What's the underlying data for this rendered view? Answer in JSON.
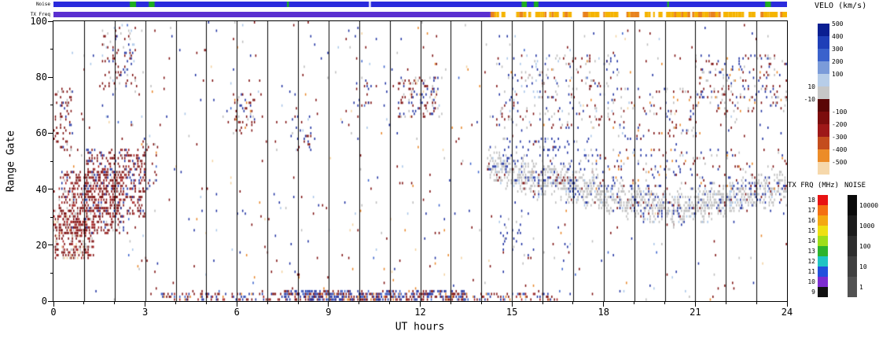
{
  "figure": {
    "ylabel": "Range Gate",
    "xlabel": "UT hours"
  },
  "strips": {
    "noise_label": "Noise",
    "tx_label": "TX Freq",
    "noise": {
      "base_color": "#2b2bdc",
      "mark_color": "#1fae1f",
      "mark_prob": 0.07,
      "gap_color": "#ffffff",
      "gap_prob": 0.012
    },
    "tx": {
      "solid_color": "#5a2fd0",
      "solid_until_hour": 14.3,
      "dash_colors": [
        "#f5b400",
        "#e8821e"
      ],
      "dash_prob": 0.6,
      "gap_color": "#ffffff"
    }
  },
  "colorbars": {
    "velo": {
      "title": "VELO (km/s)",
      "right_labels": [
        "500",
        "400",
        "300",
        "200",
        "100",
        "-100",
        "-200",
        "-300",
        "-400",
        "-500"
      ],
      "right_label_rows": [
        0,
        1,
        2,
        3,
        4,
        7,
        8,
        9,
        10,
        11
      ],
      "left_labels": [
        "10",
        "-10"
      ],
      "left_label_rows": [
        5,
        6
      ],
      "colors": [
        "#0a1f92",
        "#1f3fb8",
        "#3a62cc",
        "#7b9bd9",
        "#b7cde8",
        "#c6c6c6",
        "#5a0505",
        "#7c0d0d",
        "#9e1818",
        "#c44d1d",
        "#ec8c28",
        "#f6d8ab"
      ]
    },
    "tx_frq": {
      "title": "TX FRQ (MHz)",
      "labels": [
        "18",
        "17",
        "16",
        "15",
        "14",
        "13",
        "12",
        "11",
        "10",
        "9"
      ],
      "colors": [
        "#e81212",
        "#f47012",
        "#f4a812",
        "#eee012",
        "#9ede1a",
        "#2cb42c",
        "#1fc4c4",
        "#2250dd",
        "#7c2cd0",
        "#111111"
      ]
    },
    "noise_bar": {
      "title": "NOISE",
      "labels": [
        "10000",
        "1000",
        "100",
        "10",
        "1"
      ],
      "colors": [
        "#0a0a0a",
        "#1c1c1c",
        "#2e2e2e",
        "#404040",
        "#525252"
      ]
    }
  },
  "chart_data": {
    "type": "heatmap",
    "title": "",
    "xlabel": "UT hours",
    "ylabel": "Range Gate",
    "xlim": [
      0,
      24
    ],
    "ylim": [
      0,
      100
    ],
    "x_ticks": [
      0,
      3,
      6,
      9,
      12,
      15,
      18,
      21,
      24
    ],
    "x_minor_step": 1,
    "y_ticks": [
      0,
      20,
      40,
      60,
      80,
      100
    ],
    "y_minor_step": 10,
    "hour_gridlines": true,
    "seed": 1337,
    "resolution": {
      "cols": 560,
      "rows": 101
    },
    "palette": {
      "darkred": "#7c0d0d",
      "red": "#a61c1c",
      "navy": "#1c2fa0",
      "blue": "#3a62cc",
      "lightblue": "#a9c6e8",
      "gray": "#bdbdbd",
      "orange": "#e8872a",
      "tan": "#f2d2a0"
    },
    "features": [
      {
        "type": "sparse",
        "h": [
          0,
          24
        ],
        "g": [
          0,
          100
        ],
        "d": 0.012,
        "p": {
          "darkred": 30,
          "navy": 22,
          "gray": 18,
          "lightblue": 10,
          "orange": 8,
          "tan": 6,
          "blue": 6
        }
      },
      {
        "type": "blob",
        "h": [
          0,
          1.3
        ],
        "g": [
          15,
          32
        ],
        "d": 0.4,
        "p": {
          "darkred": 6,
          "red": 2,
          "gray": 3,
          "tan": 1
        }
      },
      {
        "type": "blob",
        "h": [
          0.2,
          2.3
        ],
        "g": [
          24,
          46
        ],
        "d": 0.3,
        "p": {
          "darkred": 7,
          "red": 2,
          "navy": 1,
          "gray": 1
        }
      },
      {
        "type": "blob",
        "h": [
          1.1,
          3.0
        ],
        "g": [
          30,
          54
        ],
        "d": 0.28,
        "p": {
          "darkred": 7,
          "red": 2,
          "navy": 2
        }
      },
      {
        "type": "blob",
        "h": [
          0.0,
          0.6
        ],
        "g": [
          54,
          76
        ],
        "d": 0.2,
        "p": {
          "darkred": 6,
          "navy": 1,
          "gray": 1
        }
      },
      {
        "type": "blob",
        "h": [
          1.6,
          2.7
        ],
        "g": [
          76,
          98
        ],
        "d": 0.14,
        "p": {
          "darkred": 4,
          "navy": 2,
          "gray": 1,
          "lightblue": 1
        }
      },
      {
        "type": "blob",
        "h": [
          2.6,
          3.4
        ],
        "g": [
          40,
          56
        ],
        "d": 0.1,
        "p": {
          "darkred": 3,
          "navy": 3,
          "gray": 1
        }
      },
      {
        "type": "blob",
        "h": [
          5.9,
          6.6
        ],
        "g": [
          60,
          74
        ],
        "d": 0.2,
        "p": {
          "darkred": 4,
          "navy": 2,
          "gray": 1,
          "orange": 1
        }
      },
      {
        "type": "blob",
        "h": [
          7.9,
          8.4
        ],
        "g": [
          54,
          66
        ],
        "d": 0.16,
        "p": {
          "navy": 3,
          "lightblue": 1,
          "darkred": 2
        }
      },
      {
        "type": "blob",
        "h": [
          11.3,
          12.6
        ],
        "g": [
          66,
          80
        ],
        "d": 0.24,
        "p": {
          "darkred": 4,
          "navy": 3,
          "gray": 2,
          "tan": 1
        }
      },
      {
        "type": "blob",
        "h": [
          9.9,
          10.4
        ],
        "g": [
          70,
          79
        ],
        "d": 0.13,
        "p": {
          "navy": 3,
          "darkred": 1
        }
      },
      {
        "type": "blob",
        "h": [
          14.5,
          18.6
        ],
        "g": [
          62,
          88
        ],
        "d": 0.09,
        "p": {
          "gray": 4,
          "darkred": 3,
          "navy": 3,
          "lightblue": 1
        }
      },
      {
        "type": "blob",
        "h": [
          18.6,
          21.2
        ],
        "g": [
          58,
          76
        ],
        "d": 0.08,
        "p": {
          "darkred": 3,
          "gray": 2,
          "navy": 2,
          "orange": 1
        }
      },
      {
        "type": "blob",
        "h": [
          21.0,
          24.0
        ],
        "g": [
          68,
          88
        ],
        "d": 0.12,
        "p": {
          "darkred": 4,
          "navy": 3,
          "gray": 3,
          "orange": 1
        }
      },
      {
        "type": "blob",
        "h": [
          14.6,
          15.3
        ],
        "g": [
          18,
          30
        ],
        "d": 0.1,
        "p": {
          "navy": 4,
          "gray": 1
        }
      },
      {
        "type": "rows",
        "h": [
          3.5,
          16.5
        ],
        "g": [
          0,
          2
        ],
        "d": 0.3,
        "p": {
          "darkred": 5,
          "red": 2,
          "navy": 3,
          "blue": 1,
          "orange": 1
        }
      },
      {
        "type": "rows",
        "h": [
          7.5,
          13.5
        ],
        "g": [
          0,
          3
        ],
        "d": 0.45,
        "p": {
          "navy": 4,
          "darkred": 4,
          "blue": 2,
          "orange": 1
        }
      },
      {
        "type": "band",
        "path": [
          [
            14.2,
            48
          ],
          [
            15.2,
            45
          ],
          [
            16.5,
            42
          ],
          [
            18,
            38
          ],
          [
            19.5,
            34
          ],
          [
            20.5,
            33
          ],
          [
            21.5,
            35
          ],
          [
            22.5,
            38
          ],
          [
            24,
            40
          ]
        ],
        "hw": 6,
        "d": 0.55,
        "p": {
          "gray": 12,
          "navy": 2,
          "darkred": 1,
          "lightblue": 1
        }
      },
      {
        "type": "blob",
        "h": [
          14.3,
          17.5
        ],
        "g": [
          46,
          58
        ],
        "d": 0.1,
        "p": {
          "navy": 5,
          "gray": 2,
          "darkred": 1
        }
      },
      {
        "type": "blob",
        "h": [
          17.5,
          24
        ],
        "g": [
          40,
          54
        ],
        "d": 0.07,
        "p": {
          "navy": 3,
          "darkred": 2,
          "gray": 2,
          "orange": 1
        }
      }
    ]
  }
}
